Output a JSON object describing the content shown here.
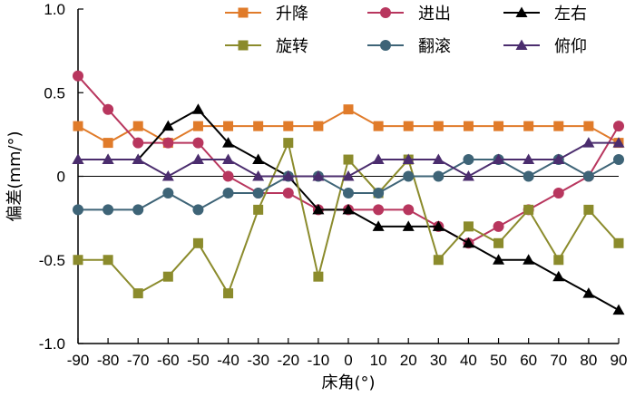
{
  "chart_data": {
    "type": "line",
    "xlabel": "床角(°)",
    "ylabel": "偏差(mm/°)",
    "xlim": [
      -90,
      90
    ],
    "ylim": [
      -1.0,
      1.0
    ],
    "x": [
      -90,
      -80,
      -70,
      -60,
      -50,
      -40,
      -30,
      -20,
      -10,
      0,
      10,
      20,
      30,
      40,
      50,
      60,
      70,
      80,
      90
    ],
    "xtick_labels": [
      "-90",
      "-80",
      "-70",
      "-60",
      "-50",
      "-40",
      "-30",
      "-20",
      "-10",
      "0",
      "10",
      "20",
      "30",
      "40",
      "50",
      "60",
      "70",
      "80",
      "90"
    ],
    "yticks": [
      -1.0,
      -0.5,
      0,
      0.5,
      1.0
    ],
    "ytick_labels": [
      "-1.0",
      "-0.5",
      "0",
      "0.5",
      "1.0"
    ],
    "grid": false,
    "legend_position": "top-right",
    "series": [
      {
        "name": "升降",
        "color": "#e07b2a",
        "marker": "square",
        "values": [
          0.3,
          0.2,
          0.3,
          0.2,
          0.3,
          0.3,
          0.3,
          0.3,
          0.3,
          0.4,
          0.3,
          0.3,
          0.3,
          0.3,
          0.3,
          0.3,
          0.3,
          0.3,
          0.2
        ]
      },
      {
        "name": "进出",
        "color": "#b8365e",
        "marker": "circle",
        "values": [
          0.6,
          0.4,
          0.2,
          0.2,
          0.2,
          0.0,
          -0.1,
          -0.1,
          -0.2,
          -0.2,
          -0.2,
          -0.2,
          -0.3,
          -0.4,
          -0.3,
          -0.2,
          -0.1,
          0.0,
          0.3
        ]
      },
      {
        "name": "左右",
        "color": "#000000",
        "marker": "triangle",
        "values": [
          0.1,
          0.1,
          0.1,
          0.3,
          0.4,
          0.2,
          0.1,
          0.0,
          -0.2,
          -0.2,
          -0.3,
          -0.3,
          -0.3,
          -0.4,
          -0.5,
          -0.5,
          -0.6,
          -0.7,
          -0.8
        ]
      },
      {
        "name": "旋转",
        "color": "#8b8b2c",
        "marker": "square",
        "values": [
          -0.5,
          -0.5,
          -0.7,
          -0.6,
          -0.4,
          -0.7,
          -0.2,
          0.2,
          -0.6,
          0.1,
          -0.1,
          0.1,
          -0.5,
          -0.3,
          -0.4,
          -0.2,
          -0.5,
          -0.2,
          -0.4
        ]
      },
      {
        "name": "翻滚",
        "color": "#3e6477",
        "marker": "circle",
        "values": [
          -0.2,
          -0.2,
          -0.2,
          -0.1,
          -0.2,
          -0.1,
          -0.1,
          0.0,
          0.0,
          -0.1,
          -0.1,
          0.0,
          0.0,
          0.1,
          0.1,
          0.0,
          0.1,
          0.0,
          0.1
        ]
      },
      {
        "name": "俯仰",
        "color": "#4b2d6e",
        "marker": "triangle",
        "values": [
          0.1,
          0.1,
          0.1,
          0.0,
          0.1,
          0.1,
          0.0,
          0.0,
          0.0,
          0.0,
          0.1,
          0.1,
          0.1,
          0.0,
          0.1,
          0.1,
          0.1,
          0.2,
          0.2
        ]
      }
    ]
  }
}
